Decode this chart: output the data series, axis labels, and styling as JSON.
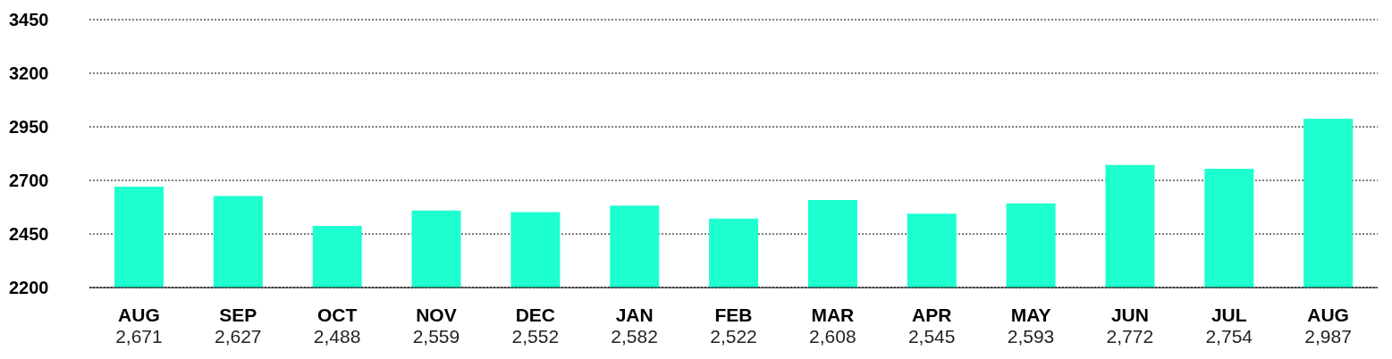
{
  "chart_data": {
    "type": "bar",
    "categories": [
      "AUG",
      "SEP",
      "OCT",
      "NOV",
      "DEC",
      "JAN",
      "FEB",
      "MAR",
      "APR",
      "MAY",
      "JUN",
      "JUL",
      "AUG"
    ],
    "values": [
      2671,
      2627,
      2488,
      2559,
      2552,
      2582,
      2522,
      2608,
      2545,
      2593,
      2772,
      2754,
      2987
    ],
    "color": "#1effd0",
    "ylim": [
      2200,
      3450
    ],
    "yticks": [
      2200,
      2450,
      2700,
      2950,
      3200,
      3450
    ],
    "value_labels": [
      "2,671",
      "2,627",
      "2,488",
      "2,559",
      "2,552",
      "2,582",
      "2,522",
      "2,608",
      "2,545",
      "2,593",
      "2,772",
      "2,754",
      "2,987"
    ],
    "grid": "y",
    "legend": false
  }
}
